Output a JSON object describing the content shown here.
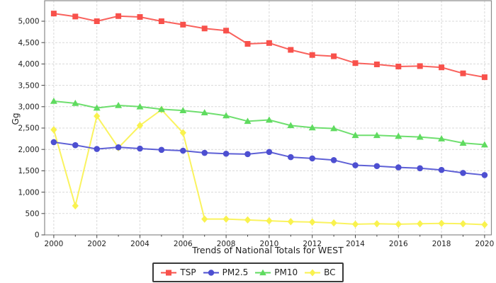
{
  "chart_data": {
    "type": "line",
    "title": "",
    "xlabel": "Trends of National Totals for WEST",
    "ylabel": "Gg",
    "x": [
      2000,
      2001,
      2002,
      2003,
      2004,
      2005,
      2006,
      2007,
      2008,
      2009,
      2010,
      2011,
      2012,
      2013,
      2014,
      2015,
      2016,
      2017,
      2018,
      2019,
      2020
    ],
    "x_major_ticks": [
      2000,
      2002,
      2004,
      2006,
      2008,
      2010,
      2012,
      2014,
      2016,
      2018,
      2020
    ],
    "x_tick_labels": [
      "2000",
      "2002",
      "2004",
      "2006",
      "2008",
      "2010",
      "2012",
      "2014",
      "2016",
      "2018",
      "2020"
    ],
    "y_ticks": [
      0,
      500,
      1000,
      1500,
      2000,
      2500,
      3000,
      3500,
      4000,
      4500,
      5000
    ],
    "y_tick_labels": [
      "0",
      "500",
      "1,000",
      "1,500",
      "2,000",
      "2,500",
      "3,000",
      "3,500",
      "4,000",
      "4,500",
      "5,000"
    ],
    "ylim": [
      0,
      5480
    ],
    "xlim": [
      1999.6,
      2020.3
    ],
    "grid": true,
    "legend_position": "bottom-center",
    "colors": {
      "axis_box": "#8a8a8a",
      "tick": "#444444",
      "grid": "#d9d9d9",
      "text": "#1f1f1f"
    },
    "series": [
      {
        "name": "TSP",
        "marker": "square",
        "color": "#f8514b",
        "values": [
          5180,
          5110,
          5000,
          5120,
          5100,
          5000,
          4920,
          4830,
          4780,
          4470,
          4490,
          4330,
          4210,
          4180,
          4020,
          3990,
          3940,
          3950,
          3920,
          3780,
          3690
        ]
      },
      {
        "name": "PM2.5",
        "marker": "circle",
        "color": "#4d4fd1",
        "values": [
          2170,
          2100,
          2010,
          2050,
          2020,
          1990,
          1970,
          1920,
          1900,
          1890,
          1940,
          1820,
          1790,
          1750,
          1630,
          1610,
          1580,
          1560,
          1520,
          1450,
          1400
        ]
      },
      {
        "name": "PM10",
        "marker": "triangle",
        "color": "#5fdb5f",
        "values": [
          3130,
          3080,
          2970,
          3030,
          3000,
          2940,
          2910,
          2860,
          2790,
          2660,
          2690,
          2560,
          2510,
          2490,
          2330,
          2330,
          2310,
          2290,
          2250,
          2150,
          2110
        ]
      },
      {
        "name": "BC",
        "marker": "diamond",
        "color": "#f9f24e",
        "values": [
          2460,
          680,
          2780,
          2040,
          2560,
          2930,
          2390,
          370,
          370,
          350,
          330,
          310,
          300,
          280,
          250,
          260,
          250,
          260,
          270,
          260,
          240
        ]
      }
    ]
  }
}
